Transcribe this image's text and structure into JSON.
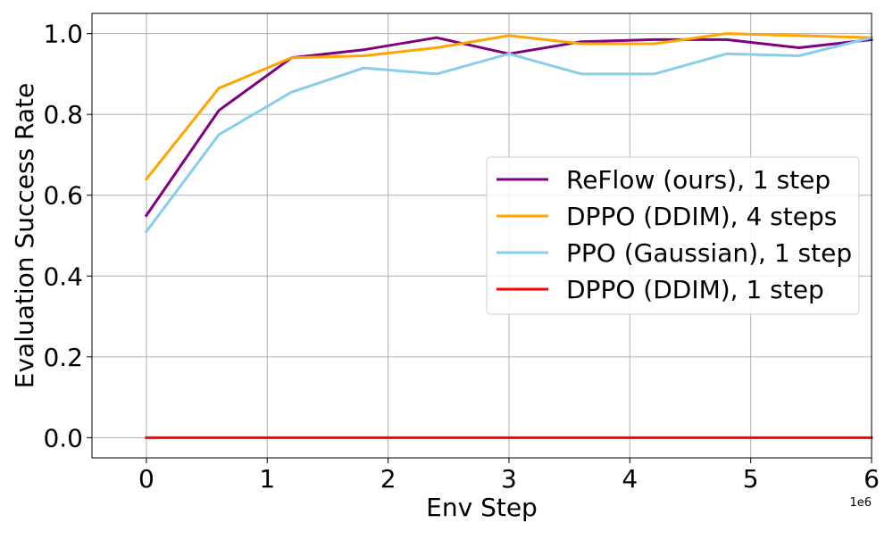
{
  "chart_data": {
    "type": "line",
    "title": "",
    "xlabel": "Env Step",
    "ylabel": "Evaluation Success Rate",
    "x_offset_label": "1e6",
    "xlim": [
      -0.45,
      6.0
    ],
    "ylim": [
      -0.05,
      1.05
    ],
    "x_ticks": [
      0,
      1,
      2,
      3,
      4,
      5,
      6
    ],
    "x_tick_labels": [
      "0",
      "1",
      "2",
      "3",
      "4",
      "5",
      "6"
    ],
    "y_ticks": [
      0.0,
      0.2,
      0.4,
      0.6,
      0.8,
      1.0
    ],
    "y_tick_labels": [
      "0.0",
      "0.2",
      "0.4",
      "0.6",
      "0.8",
      "1.0"
    ],
    "grid": true,
    "legend_position": "center-right",
    "series": [
      {
        "name": "ReFlow (ours), 1 step",
        "color": "#800080",
        "x": [
          0,
          0.6,
          1.2,
          1.8,
          2.4,
          3.0,
          3.6,
          4.2,
          4.8,
          5.4,
          6.0
        ],
        "y": [
          0.55,
          0.81,
          0.94,
          0.96,
          0.99,
          0.95,
          0.98,
          0.985,
          0.985,
          0.965,
          0.985
        ]
      },
      {
        "name": "DPPO (DDIM), 4 steps",
        "color": "#FFA500",
        "x": [
          0,
          0.6,
          1.2,
          1.8,
          2.4,
          3.0,
          3.6,
          4.2,
          4.8,
          5.4,
          6.0
        ],
        "y": [
          0.64,
          0.865,
          0.94,
          0.945,
          0.965,
          0.995,
          0.975,
          0.975,
          1.0,
          0.995,
          0.99
        ]
      },
      {
        "name": "PPO (Gaussian), 1 step",
        "color": "#87CEEB",
        "x": [
          0,
          0.6,
          1.2,
          1.8,
          2.4,
          3.0,
          3.6,
          4.2,
          4.8,
          5.4,
          6.0
        ],
        "y": [
          0.51,
          0.75,
          0.855,
          0.915,
          0.9,
          0.95,
          0.9,
          0.9,
          0.95,
          0.945,
          0.99
        ]
      },
      {
        "name": "DPPO (DDIM), 1 step",
        "color": "#FF0000",
        "x": [
          0,
          0.6,
          1.2,
          1.8,
          2.4,
          3.0,
          3.6,
          4.2,
          4.8,
          5.4,
          6.0
        ],
        "y": [
          0,
          0,
          0,
          0,
          0,
          0,
          0,
          0,
          0,
          0,
          0
        ]
      }
    ]
  }
}
